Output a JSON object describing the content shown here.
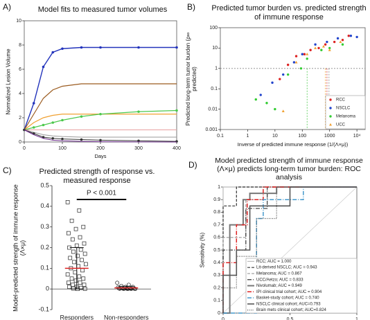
{
  "chart_data": [
    {
      "type": "line",
      "panel_label": "A)",
      "title": "Model fits to measured tumor volumes",
      "x_label": "Days",
      "y_label": "Normalized Lesion Volume",
      "x": [
        0,
        25,
        50,
        75,
        100,
        150,
        200,
        300,
        400
      ],
      "xlim": [
        0,
        400
      ],
      "xticks": [
        0,
        100,
        200,
        300,
        400
      ],
      "ylim": [
        0,
        10
      ],
      "yticks": [
        0,
        2,
        4,
        6,
        8,
        10
      ],
      "box": true,
      "series": [
        {
          "color": "#2233bb",
          "width": 1.4,
          "markers": true,
          "values": [
            1,
            3.2,
            6.2,
            7.4,
            7.7,
            7.8,
            7.8,
            7.8,
            7.8
          ]
        },
        {
          "color": "#9a5a1e",
          "width": 1.2,
          "values": [
            1,
            2.3,
            3.6,
            4.3,
            4.6,
            4.8,
            4.8,
            4.8,
            4.8
          ]
        },
        {
          "color": "#f0a030",
          "width": 1.2,
          "values": [
            1,
            1.6,
            2.0,
            2.2,
            2.3,
            2.3,
            2.3,
            2.3,
            2.3
          ]
        },
        {
          "color": "#4cc84c",
          "width": 1.2,
          "markers": true,
          "values": [
            1,
            1.2,
            1.4,
            1.6,
            1.8,
            2.1,
            2.3,
            2.5,
            2.6
          ]
        },
        {
          "color": "#e8a0a0",
          "width": 1,
          "values": [
            1,
            1,
            1,
            1,
            1,
            1,
            1,
            1,
            1
          ]
        },
        {
          "color": "#999999",
          "width": 1,
          "values": [
            1,
            0.8,
            0.6,
            0.5,
            0.45,
            0.4,
            0.4,
            0.4,
            0.4
          ]
        },
        {
          "color": "#333333",
          "width": 1,
          "markers": true,
          "values": [
            1,
            0.7,
            0.4,
            0.3,
            0.25,
            0.2,
            0.15,
            0.1,
            0.05
          ]
        },
        {
          "color": "#6a2a8a",
          "width": 1,
          "values": [
            1,
            0.6,
            0.3,
            0.15,
            0.1,
            0.05,
            0.02,
            0.01,
            0
          ]
        }
      ]
    },
    {
      "type": "scatter",
      "panel_label": "B)",
      "title": "Predicted tumor burden vs. predicted strength of immune response",
      "x_label": "Inverse of predicted immune response (1/(Λ×μ))",
      "y_label": "Predicted long-term tumor burden (ρ∞ predicted)",
      "xscale": "log",
      "yscale": "log",
      "box": true,
      "xlim": [
        0.1,
        20000
      ],
      "xticks": [
        0.1,
        1,
        10,
        100,
        1000,
        {
          "value": 10000,
          "label": "10⁴"
        }
      ],
      "ylim": [
        0.001,
        100
      ],
      "yticks": [
        0.001,
        0.01,
        0.1,
        1,
        10,
        100
      ],
      "hlines": [
        {
          "value": 1,
          "color": "#888888"
        }
      ],
      "vlines": [
        {
          "value": 150,
          "color": "#4cc84c"
        },
        {
          "value": 700,
          "color": "#f0a030"
        },
        {
          "value": 800,
          "color": "#cc2222"
        },
        {
          "value": 950,
          "color": "#888888"
        }
      ],
      "series": [
        {
          "name": "RCC",
          "color": "#dd2222",
          "marker": "circle",
          "x": [
            15,
            30,
            60,
            120,
            200,
            400,
            700,
            1500,
            3000,
            5000
          ],
          "values": [
            0.3,
            1.5,
            4,
            5,
            8,
            10,
            15,
            20,
            25,
            40
          ]
        },
        {
          "name": "NSCLC",
          "color": "#2244cc",
          "marker": "circle",
          "x": [
            3,
            8,
            20,
            50,
            100,
            300,
            800,
            2000,
            6000,
            10000
          ],
          "values": [
            0.05,
            0.2,
            0.5,
            2,
            5,
            15,
            20,
            30,
            40,
            35
          ]
        },
        {
          "name": "Melanoma",
          "color": "#33cc33",
          "marker": "circle",
          "x": [
            2,
            5,
            10,
            30,
            90,
            150,
            500,
            1000,
            3000
          ],
          "values": [
            0.03,
            0.02,
            0.01,
            0.5,
            1,
            3,
            8,
            10,
            15
          ]
        },
        {
          "name": "UCC",
          "color": "#f0a030",
          "marker": "triangle",
          "x": [
            20,
            60,
            150,
            300,
            600,
            1000,
            2500
          ],
          "values": [
            0.008,
            2,
            5,
            10,
            12,
            8,
            20
          ]
        }
      ]
    },
    {
      "type": "dot",
      "panel_label": "C)",
      "title": "Predicted strength of response vs. measured response",
      "y_label": "Model-predicted strength of immune response (Λ×μ)",
      "annotation": "P < 0.001",
      "box": false,
      "categories": [
        "Responders",
        "Non-responders"
      ],
      "markers": [
        "square",
        "circle"
      ],
      "ylim": [
        -0.1,
        0.5
      ],
      "yticks": [
        -0.1,
        0,
        0.1,
        0.2,
        0.3,
        0.4,
        0.5
      ],
      "points": [
        [
          0.42,
          0.38,
          0.33,
          0.3,
          0.29,
          0.27,
          0.25,
          0.24,
          0.22,
          0.21,
          0.2,
          0.19,
          0.18,
          0.17,
          0.16,
          0.15,
          0.14,
          0.13,
          0.12,
          0.11,
          0.1,
          0.09,
          0.08,
          0.07,
          0.06,
          0.05,
          0.05,
          0.04,
          0.03,
          0.03,
          0.02,
          0.02,
          0.01,
          0.01,
          0.005,
          0.002,
          0.001,
          0
        ],
        [
          0.03,
          0.02,
          0.015,
          0.01,
          0.01,
          0.008,
          0.006,
          0.005,
          0.004,
          0.003,
          0.003,
          0.002,
          0.002,
          0.001,
          0.001,
          0.001,
          0,
          0,
          0,
          0
        ]
      ],
      "means": [
        0.1,
        0.005
      ],
      "sd": [
        0.1,
        0.008
      ],
      "mean_color": "#dd2222"
    },
    {
      "type": "line",
      "panel_label": "D)",
      "title": "Model predicted strength of immune response (Λ×μ) predicts long-term tumor burden: ROC analysis",
      "y_label": "Sensitivity (%)",
      "box": true,
      "legend": "lower right",
      "xlim": [
        0,
        1
      ],
      "xticks": [
        0,
        0.5,
        1
      ],
      "ylim": [
        0,
        1
      ],
      "yticks": [
        0,
        0.1,
        0.2,
        0.3,
        0.4,
        0.5,
        0.6,
        0.7,
        0.8,
        0.9,
        1
      ],
      "series": [
        {
          "name": "RCC; AUC = 1.000",
          "color": "#bbbbbb",
          "width": 1.2,
          "x": [
            0,
            0,
            1
          ],
          "values": [
            0,
            1,
            1
          ]
        },
        {
          "name": "Lit-derived NSCLC; AUC = 0.943",
          "color": "#333333",
          "dash": "4 2",
          "width": 1.2,
          "x": [
            0,
            0,
            0.1,
            0.1,
            1
          ],
          "values": [
            0,
            0.85,
            0.85,
            1,
            1
          ]
        },
        {
          "name": "Melanoma; AUC = 0.867",
          "color": "#999999",
          "dash": "4 2",
          "width": 1.2,
          "x": [
            0,
            0,
            0.17,
            0.17,
            0.33,
            0.33,
            1
          ],
          "values": [
            0,
            0.6,
            0.6,
            0.9,
            0.9,
            1,
            1
          ]
        },
        {
          "name": "UCC/Aetzo; AUC = 0.833",
          "color": "#333333",
          "dash": "6 2 1 2",
          "width": 1.2,
          "x": [
            0,
            0,
            0.17,
            0.17,
            0.33,
            0.33,
            1
          ],
          "values": [
            0,
            0.5,
            0.5,
            0.83,
            0.83,
            1,
            1
          ]
        },
        {
          "name": "Nivolumab; AUC = 0.949",
          "color": "#777777",
          "width": 2,
          "x": [
            0,
            0.05,
            0.05,
            0.15,
            0.15,
            0.2,
            0.2,
            0.4,
            0.4,
            1
          ],
          "values": [
            0,
            0,
            0.7,
            0.7,
            0.9,
            0.9,
            0.95,
            0.95,
            1,
            1
          ]
        },
        {
          "name": "IPI clinical trial cohort; AUC = 0.904",
          "color": "#dd2222",
          "dash": "6 2 1 2",
          "width": 1.5,
          "x": [
            0,
            0,
            0.1,
            0.1,
            0.18,
            0.18,
            0.3,
            0.3,
            1
          ],
          "values": [
            0,
            0.4,
            0.4,
            0.7,
            0.7,
            0.9,
            0.9,
            1,
            1
          ]
        },
        {
          "name": "Basket-study cohort; AUC = 0.740",
          "color": "#4499cc",
          "dash": "6 2 1 2",
          "width": 1.5,
          "x": [
            0,
            0.25,
            0.25,
            0.3,
            0.3,
            0.6,
            0.6,
            1
          ],
          "values": [
            0,
            0,
            0.75,
            0.75,
            0.9,
            0.9,
            1,
            1
          ]
        },
        {
          "name": "NSCLC clinical cohort; AUC=0.793",
          "color": "#555555",
          "width": 1.6,
          "x": [
            0,
            0,
            0.1,
            0.1,
            0.2,
            0.2,
            0.5,
            0.5,
            1
          ],
          "values": [
            0,
            0.3,
            0.3,
            0.5,
            0.5,
            0.85,
            0.85,
            1,
            1
          ]
        },
        {
          "name": "Brain mets clinical cohort; AUC=0.824",
          "color": "#555555",
          "dash": "1 1.5",
          "width": 1.2,
          "x": [
            0,
            0,
            0.1,
            0.1,
            0.25,
            0.25,
            0.4,
            0.4,
            1
          ],
          "values": [
            0,
            0.2,
            0.2,
            0.45,
            0.45,
            0.75,
            0.75,
            1,
            1
          ]
        }
      ]
    }
  ]
}
